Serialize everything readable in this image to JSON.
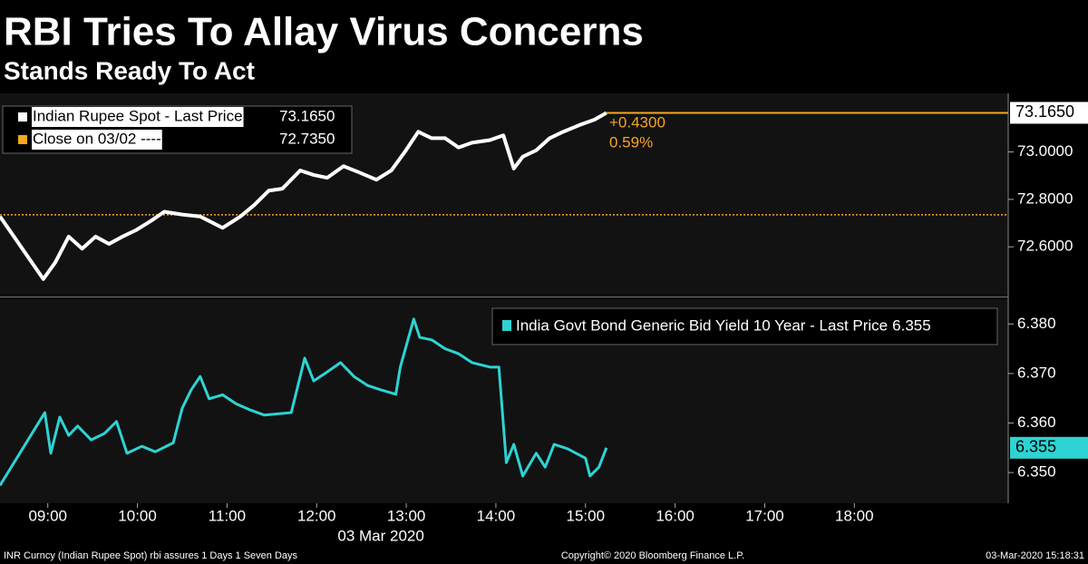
{
  "header": {
    "title": "RBI Tries To Allay Virus Concerns",
    "subtitle": "Stands Ready To Act"
  },
  "chart_data": [
    {
      "type": "line",
      "x": [
        508,
        537,
        545,
        554,
        563,
        572,
        581,
        590,
        599,
        609,
        618,
        630,
        642,
        657,
        669,
        678,
        688,
        697,
        709,
        718,
        727,
        738,
        748,
        760,
        770,
        779,
        788,
        797,
        806,
        815,
        824,
        836,
        845,
        852,
        858,
        867,
        876,
        885,
        897,
        906,
        914
      ],
      "series": [
        {
          "name": "Indian Rupee Spot - Last Price",
          "color": "#ffffff",
          "values": [
            72.728,
            72.464,
            72.534,
            72.643,
            72.592,
            72.643,
            72.612,
            72.643,
            72.67,
            72.709,
            72.748,
            72.736,
            72.728,
            72.68,
            72.728,
            72.775,
            72.837,
            72.845,
            72.922,
            72.903,
            72.891,
            72.94,
            72.915,
            72.883,
            72.922,
            73.0,
            73.085,
            73.058,
            73.058,
            73.019,
            73.039,
            73.05,
            73.07,
            72.93,
            72.98,
            73.007,
            73.058,
            73.085,
            73.116,
            73.136,
            73.165
          ],
          "legend_value": {
            "value": 73.165,
            "label": "73.1650"
          }
        }
      ],
      "reference_line": {
        "name": "Close on 03/02 ----",
        "value": 72.735,
        "label": "72.7350",
        "color": "#f5a623"
      },
      "annotations": [
        "+0.4300",
        "0.59%"
      ],
      "xlim": [
        508,
        1183
      ],
      "ylim": [
        72.398,
        73.247
      ],
      "yticks": [
        {
          "value": 72.6,
          "label": "72.6000"
        },
        {
          "value": 72.8,
          "label": "72.8000"
        },
        {
          "value": 73.0,
          "label": "73.0000"
        }
      ]
    },
    {
      "type": "line",
      "x": [
        508,
        538,
        542,
        548,
        554,
        560,
        569,
        578,
        586,
        593,
        603,
        612,
        624,
        630,
        636,
        642,
        648,
        657,
        666,
        675,
        685,
        703,
        712,
        718,
        727,
        736,
        745,
        754,
        763,
        773,
        776,
        785,
        789,
        797,
        806,
        815,
        824,
        836,
        842,
        847,
        852,
        858,
        867,
        873,
        879,
        888,
        900,
        903,
        909,
        914
      ],
      "series": [
        {
          "name": "India Govt Bond Generic Bid Yield 10 Year - Last Price",
          "color": "#2ed3d3",
          "values": [
            6.3474,
            6.3621,
            6.3539,
            6.3612,
            6.3575,
            6.3594,
            6.3566,
            6.3579,
            6.3603,
            6.3539,
            6.3553,
            6.3542,
            6.356,
            6.363,
            6.3667,
            6.3694,
            6.3649,
            6.3657,
            6.3639,
            6.3627,
            6.3616,
            6.3621,
            6.3731,
            6.3685,
            6.3703,
            6.3722,
            6.3694,
            6.3676,
            6.3667,
            6.3658,
            6.3713,
            6.381,
            6.3773,
            6.3768,
            6.375,
            6.374,
            6.3722,
            6.3713,
            6.3713,
            6.352,
            6.3557,
            6.3493,
            6.3539,
            6.3511,
            6.3557,
            6.3548,
            6.3529,
            6.3493,
            6.3511,
            6.355
          ],
          "legend_value": {
            "value": 6.355,
            "label": "6.355"
          }
        }
      ],
      "xlim": [
        508,
        1183
      ],
      "ylim": [
        6.3438,
        6.385
      ],
      "yticks": [
        {
          "value": 6.35,
          "label": "6.350"
        },
        {
          "value": 6.36,
          "label": "6.360"
        },
        {
          "value": 6.37,
          "label": "6.370"
        },
        {
          "value": 6.38,
          "label": "6.380"
        }
      ],
      "xticks": [
        {
          "value": 540,
          "label": "09:00"
        },
        {
          "value": 600,
          "label": "10:00"
        },
        {
          "value": 660,
          "label": "11:00"
        },
        {
          "value": 720,
          "label": "12:00"
        },
        {
          "value": 780,
          "label": "13:00"
        },
        {
          "value": 840,
          "label": "14:00"
        },
        {
          "value": 900,
          "label": "15:00"
        },
        {
          "value": 960,
          "label": "16:00"
        },
        {
          "value": 1020,
          "label": "17:00"
        },
        {
          "value": 1080,
          "label": "18:00"
        }
      ],
      "xlabel": "03 Mar 2020"
    }
  ],
  "footer": {
    "left": "INR Curncy (Indian Rupee Spot) rbi assures 1 Days 1 Seven Days",
    "center": "Copyright© 2020 Bloomberg Finance L.P.",
    "right": "03-Mar-2020 15:18:31"
  }
}
